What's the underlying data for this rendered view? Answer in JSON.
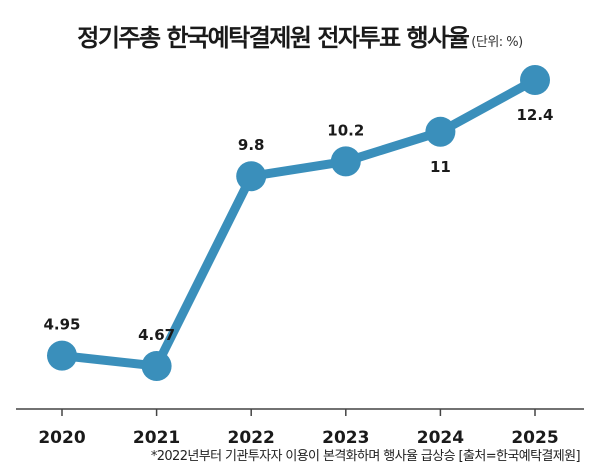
{
  "title": "정기주총 한국예탁결제원 전자투표 행사율",
  "unit": "(단위: %)",
  "footnote": "*2022년부터 기관투자자 이용이 본격화하며 행사율 급상승 [출처=한국예탁결제원]",
  "colors": {
    "line": "#3a8fbb",
    "axis": "#444444",
    "text": "#1a1a1a"
  },
  "chart_data": {
    "type": "line",
    "title": "정기주총 한국예탁결제원 전자투표 행사율",
    "unit": "(단위: %)",
    "categories": [
      "2020",
      "2021",
      "2022",
      "2023",
      "2024",
      "2025"
    ],
    "series": [
      {
        "values": [
          4.95,
          4.67,
          9.8,
          10.2,
          11,
          12.4
        ]
      }
    ],
    "data_labels": [
      "4.95",
      "4.67",
      "9.8",
      "10.2",
      "11",
      "12.4"
    ],
    "label_position": [
      "above",
      "above",
      "above",
      "above",
      "below",
      "below"
    ],
    "ylim": [
      2.5,
      13.5
    ],
    "grid": false,
    "legend": "none"
  }
}
